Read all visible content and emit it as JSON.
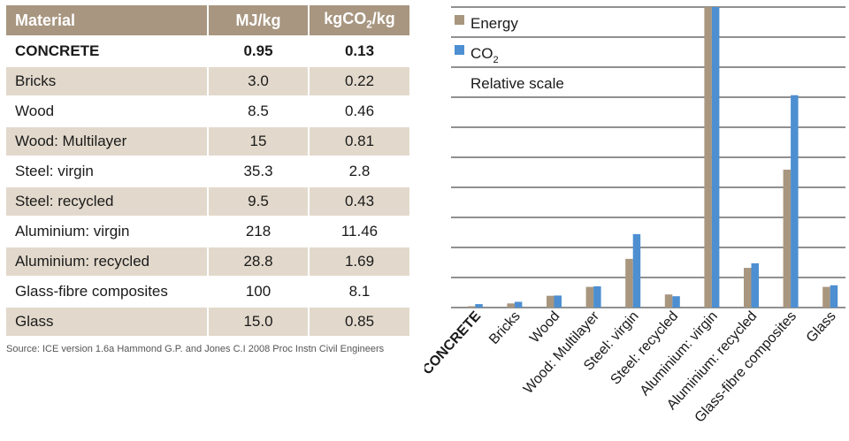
{
  "table": {
    "headers": {
      "material": "Material",
      "energy": "MJ/kg",
      "co2_prefix": "kgCO",
      "co2_sub": "2",
      "co2_suffix": "/kg"
    },
    "rows": [
      {
        "material": "CONCRETE",
        "energy": "0.95",
        "co2": "0.13"
      },
      {
        "material": "Bricks",
        "energy": "3.0",
        "co2": "0.22"
      },
      {
        "material": "Wood",
        "energy": "8.5",
        "co2": "0.46"
      },
      {
        "material": "Wood: Multilayer",
        "energy": "15",
        "co2": "0.81"
      },
      {
        "material": "Steel: virgin",
        "energy": "35.3",
        "co2": "2.8"
      },
      {
        "material": "Steel: recycled",
        "energy": "9.5",
        "co2": "0.43"
      },
      {
        "material": "Aluminium: virgin",
        "energy": "218",
        "co2": "11.46"
      },
      {
        "material": "Aluminium: recycled",
        "energy": "28.8",
        "co2": "1.69"
      },
      {
        "material": "Glass-fibre composites",
        "energy": "100",
        "co2": "8.1"
      },
      {
        "material": "Glass",
        "energy": "15.0",
        "co2": "0.85"
      }
    ]
  },
  "source": "Source: ICE version 1.6a Hammond G.P. and Jones C.I 2008 Proc Instn Civil Engineers",
  "chart_data": {
    "type": "bar",
    "categories": [
      "CONCRETE",
      "Bricks",
      "Wood",
      "Wood: Multilayer",
      "Steel: virgin",
      "Steel: recycled",
      "Aluminium: virgin",
      "Aluminium: recycled",
      "Glass-fibre composites",
      "Glass"
    ],
    "series": [
      {
        "name": "Energy",
        "color": "#a8967f",
        "values": [
          0.95,
          3.0,
          8.5,
          15,
          35.3,
          9.5,
          218,
          28.8,
          100,
          15.0
        ]
      },
      {
        "name": "CO2",
        "color": "#4d8fd1",
        "values": [
          0.13,
          0.22,
          0.46,
          0.81,
          2.8,
          0.43,
          11.46,
          1.69,
          8.1,
          0.85
        ]
      }
    ],
    "legend": {
      "energy": "Energy",
      "co2_prefix": "CO",
      "co2_sub": "2",
      "note": "Relative scale"
    },
    "legend_position": "top-left",
    "grid": true,
    "xlabel": "",
    "ylabel": ""
  }
}
